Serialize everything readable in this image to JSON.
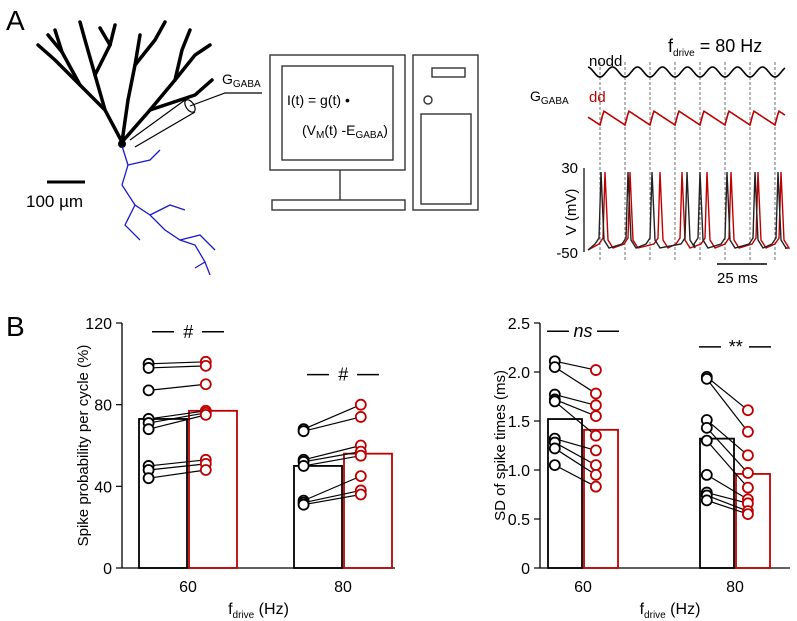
{
  "panel_labels": [
    "A",
    "B"
  ],
  "panel_a": {
    "conductance_label": {
      "main": "G",
      "sub": "GABA"
    },
    "equation_line1": "I(t) = g(t) •",
    "equation_line2": {
      "open": "(V",
      "sub1": "M",
      "mid": "(t) -E",
      "sub2": "GABA",
      "close": ")"
    },
    "scale_bar": "100 µm",
    "trace_labels": [
      "nodd",
      "dd"
    ],
    "drive": {
      "main": "f",
      "sub": "drive",
      "rest": " = 80 Hz"
    },
    "v_axis": {
      "label": "V (mV)",
      "ticks": [
        "30",
        "-50"
      ]
    },
    "time_scale": "25 ms"
  },
  "chart_data": [
    {
      "type": "bar",
      "y_label": "Spike probability per cycle (%)",
      "x_label": {
        "main": "f",
        "sub": "drive",
        "rest": " (Hz)"
      },
      "categories": [
        "60",
        "80"
      ],
      "series": [
        {
          "color": "#000000",
          "values": [
            73,
            50
          ],
          "points": [
            [
              100,
              98,
              87,
              73,
              71,
              68,
              50,
              48,
              44
            ],
            [
              68,
              67,
              53,
              52,
              50,
              33,
              32,
              31
            ]
          ]
        },
        {
          "color": "#c00000",
          "values": [
            77,
            56
          ],
          "points": [
            [
              101,
              99,
              90,
              77,
              76,
              75,
              53,
              51,
              48
            ],
            [
              80,
              74,
              60,
              57,
              55,
              45,
              38,
              36
            ]
          ]
        }
      ],
      "annotations": [
        "#",
        "#"
      ],
      "ylim": [
        0,
        120
      ],
      "yticks": [
        0,
        40,
        80,
        120
      ]
    },
    {
      "type": "bar",
      "y_label": "SD of spike times (ms)",
      "x_label": {
        "main": "f",
        "sub": "drive",
        "rest": " (Hz)"
      },
      "categories": [
        "60",
        "80"
      ],
      "series": [
        {
          "color": "#000000",
          "values": [
            1.52,
            1.32
          ],
          "points": [
            [
              2.11,
              2.05,
              1.77,
              1.72,
              1.7,
              1.32,
              1.28,
              1.22,
              1.05
            ],
            [
              1.95,
              1.93,
              1.51,
              1.43,
              1.3,
              0.95,
              0.77,
              0.74,
              0.69
            ]
          ]
        },
        {
          "color": "#c00000",
          "values": [
            1.41,
            0.96
          ],
          "points": [
            [
              2.02,
              1.78,
              1.66,
              1.55,
              1.35,
              1.2,
              1.05,
              0.95,
              0.83
            ],
            [
              1.61,
              1.39,
              1.15,
              0.97,
              0.82,
              0.7,
              0.66,
              0.58,
              0.55
            ]
          ]
        }
      ],
      "annotations": [
        "ns",
        "**"
      ],
      "ylim": [
        0,
        2.5
      ],
      "yticks": [
        0,
        0.5,
        {
          "value": 1,
          "label": "1.0"
        },
        1.5,
        {
          "value": 2,
          "label": "2.0"
        },
        2.5
      ]
    }
  ]
}
